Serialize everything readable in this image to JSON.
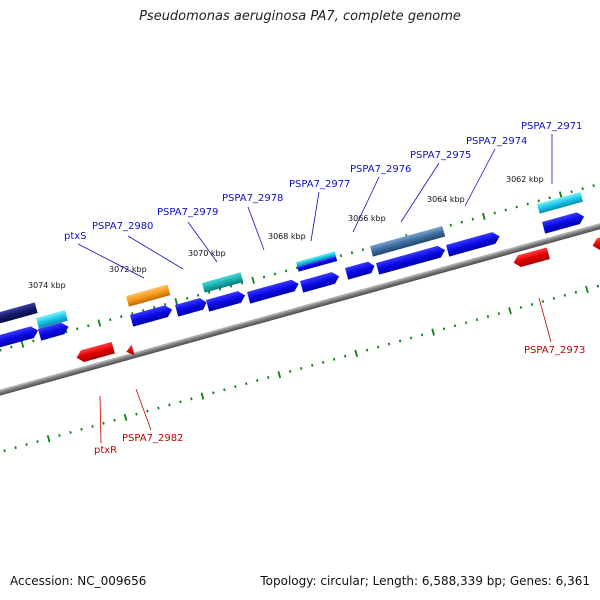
{
  "title": "Pseudomonas aeruginosa PA7, complete genome",
  "footer": {
    "accession": "Accession: NC_009656",
    "genome_info": "Topology: circular; Length: 6,588,339 bp; Genes: 6,361"
  },
  "colors": {
    "gene_blue": "#0a0ae6",
    "gene_red": "#e00000",
    "gene_cyan": "#19c8e6",
    "gene_teal": "#1ab0b0",
    "gene_orange": "#f59a1a",
    "gene_navy": "#141a6e",
    "gene_steel": "#3e6e9e",
    "label_blue": "#1010c0",
    "label_red": "#c00000",
    "tick_green": "#108010",
    "backbone": "#808080"
  },
  "kbp_labels": [
    "3074 kbp",
    "3072 kbp",
    "3070 kbp",
    "3068 kbp",
    "3066 kbp",
    "3064 kbp",
    "3062 kbp"
  ],
  "gene_labels_top": [
    "ptxS",
    "PSPA7_2980",
    "PSPA7_2979",
    "PSPA7_2978",
    "PSPA7_2977",
    "PSPA7_2976",
    "PSPA7_2975",
    "PSPA7_2974",
    "PSPA7_2971"
  ],
  "gene_labels_bottom": [
    "ptxR",
    "PSPA7_2982",
    "PSPA7_2973"
  ]
}
